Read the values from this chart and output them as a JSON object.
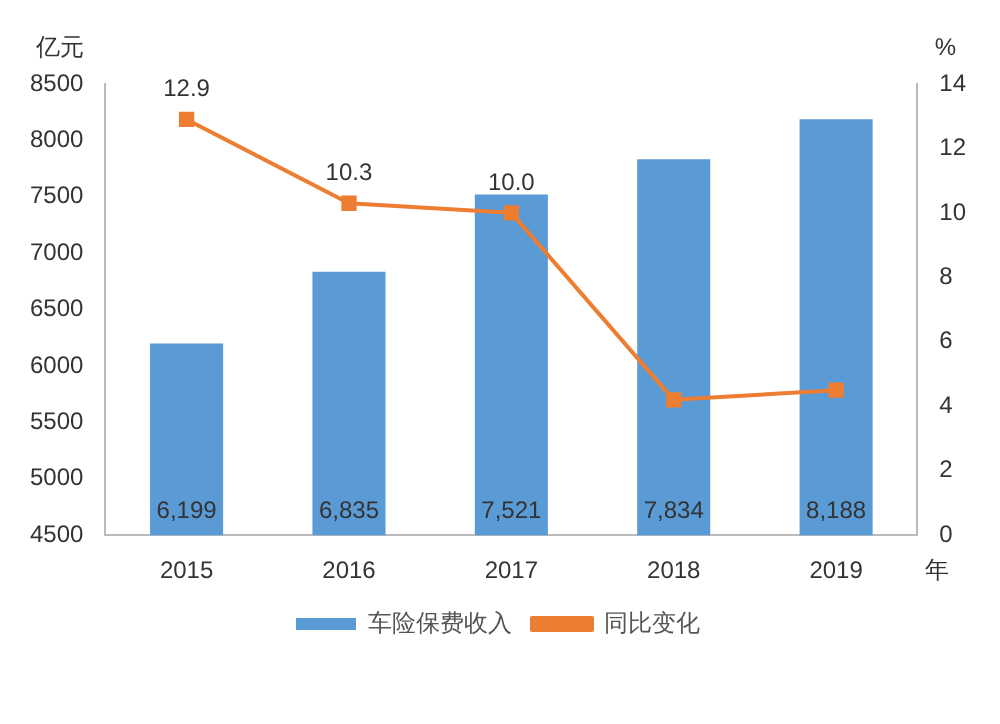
{
  "chart_data": {
    "type": "bar",
    "categories": [
      "2015",
      "2016",
      "2017",
      "2018",
      "2019"
    ],
    "xlabel": "年",
    "ylabel": "亿元",
    "y2label": "%",
    "series": [
      {
        "name": "车险保费收入",
        "color": "#5b9bd5",
        "values": [
          6199,
          6835,
          7521,
          7834,
          8188
        ],
        "value_labels": [
          "6,199",
          "6,835",
          "7,521",
          "7,834",
          "8,188"
        ]
      },
      {
        "name": "同比变化",
        "type": "line",
        "axis": "y2",
        "color": "#ed7d31",
        "marker": "square",
        "values": [
          12.9,
          10.3,
          10.0,
          4.2,
          4.5
        ],
        "value_labels": [
          "12.9",
          "10.3",
          "10.0",
          null,
          null
        ]
      }
    ],
    "ylim": [
      4500,
      8500
    ],
    "yticks": [
      4500,
      5000,
      5500,
      6000,
      6500,
      7000,
      7500,
      8000,
      8500
    ],
    "y2lim": [
      0,
      14
    ],
    "y2ticks": [
      0,
      2,
      4,
      6,
      8,
      10,
      12,
      14
    ],
    "grid": false,
    "legend": "bottom"
  }
}
